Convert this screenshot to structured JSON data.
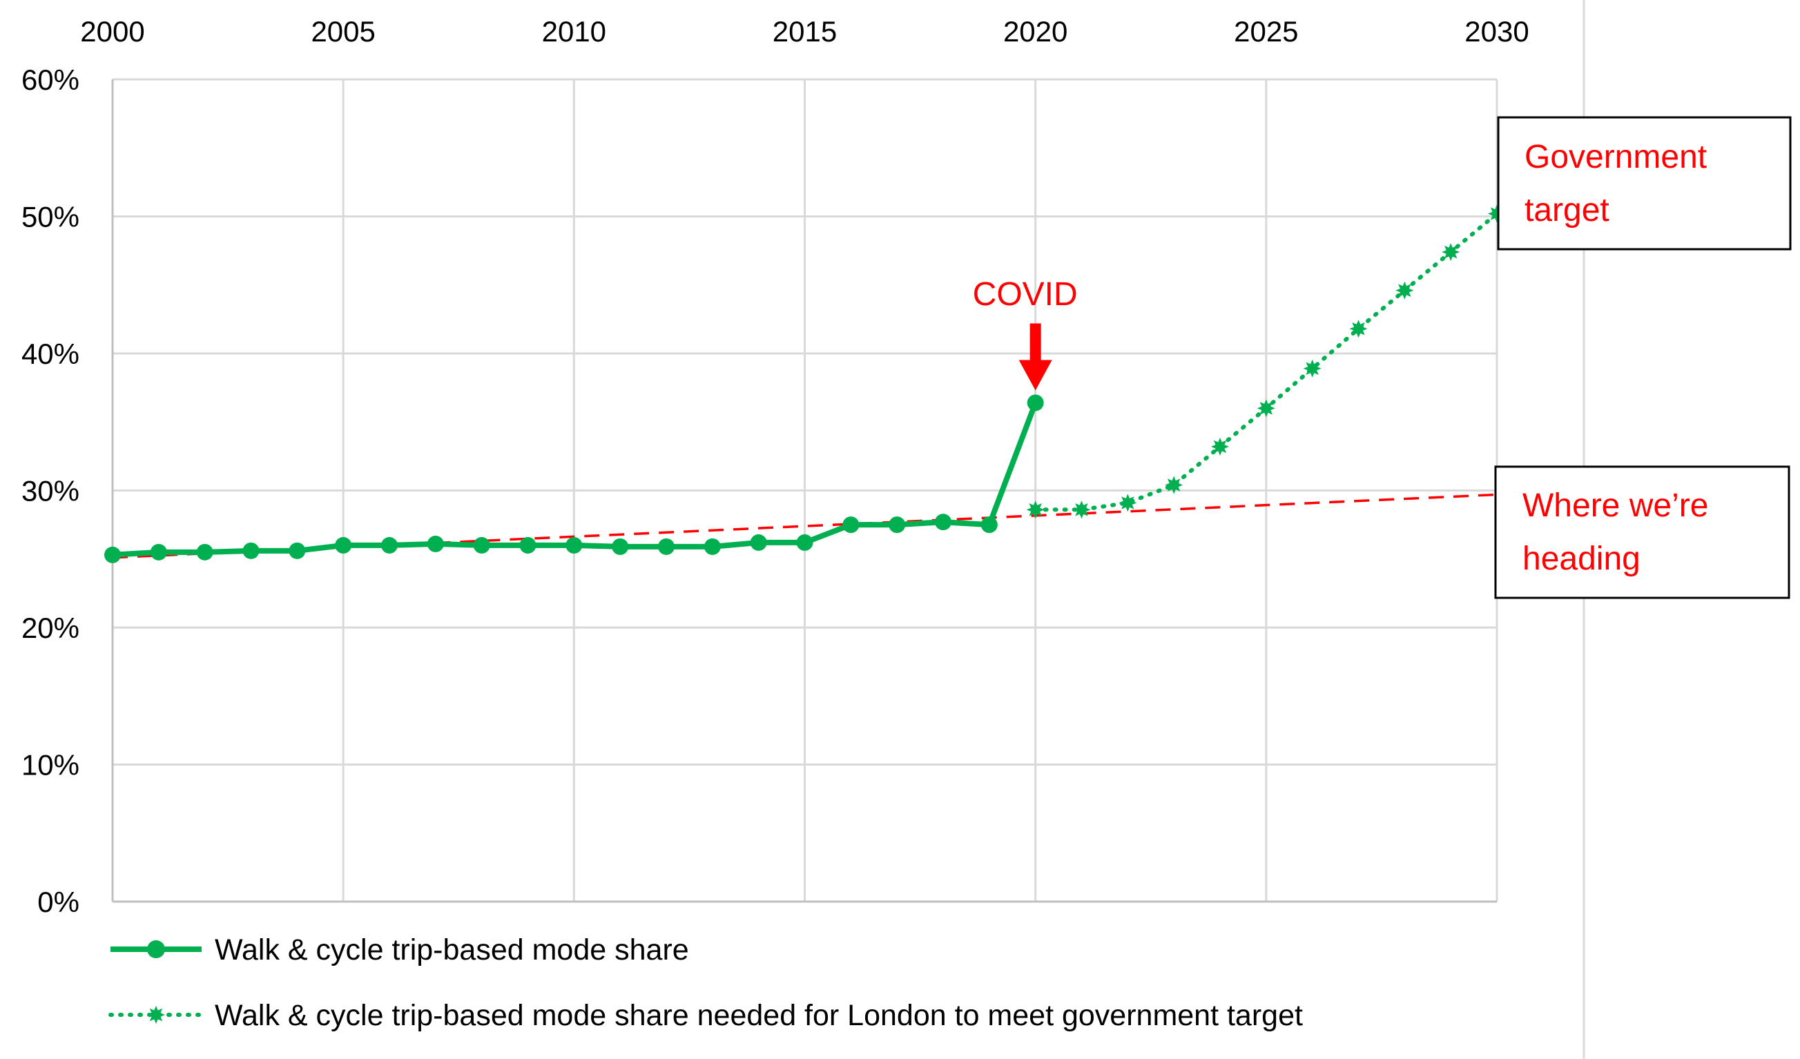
{
  "chart_data": {
    "type": "line",
    "title": "",
    "xlabel": "",
    "ylabel": "",
    "xlim": [
      2000,
      2030
    ],
    "ylim": [
      0,
      60
    ],
    "x_ticks": [
      "2000",
      "2005",
      "2010",
      "2015",
      "2020",
      "2025",
      "2030"
    ],
    "y_ticks": [
      "0%",
      "10%",
      "20%",
      "30%",
      "40%",
      "50%",
      "60%"
    ],
    "x_axis_position": "top",
    "grid": true,
    "legend_position": "bottom-left",
    "series": [
      {
        "name": "Walk & cycle trip-based mode share",
        "color": "#00b050",
        "style": "solid",
        "marker": "circle",
        "x": [
          2000,
          2001,
          2002,
          2003,
          2004,
          2005,
          2006,
          2007,
          2008,
          2009,
          2010,
          2011,
          2012,
          2013,
          2014,
          2015,
          2016,
          2017,
          2018,
          2019,
          2020
        ],
        "values": [
          25.3,
          25.5,
          25.5,
          25.6,
          25.6,
          26.0,
          26.0,
          26.1,
          26.0,
          26.0,
          26.0,
          25.9,
          25.9,
          25.9,
          26.2,
          26.2,
          27.5,
          27.5,
          27.7,
          27.5,
          36.4
        ]
      },
      {
        "name": "Walk & cycle trip-based mode share needed for London to meet government target",
        "color": "#00b050",
        "style": "dotted",
        "marker": "star",
        "x": [
          2020,
          2021,
          2022,
          2023,
          2024,
          2025,
          2026,
          2027,
          2028,
          2029,
          2030
        ],
        "values": [
          28.6,
          28.6,
          29.1,
          30.4,
          33.2,
          36.0,
          38.9,
          41.8,
          44.6,
          47.4,
          50.2
        ]
      }
    ],
    "trend_line": {
      "color": "#ff0000",
      "style": "dashed",
      "x": [
        2000,
        2030
      ],
      "values": [
        25.1,
        29.7
      ]
    },
    "annotations": {
      "covid": {
        "label": "COVID",
        "x": 2020,
        "y": 36.4,
        "color": "#ff0000"
      },
      "government_target": {
        "label_line1": "Government",
        "label_line2": "target",
        "color": "#ff0000"
      },
      "heading": {
        "label_line1": "Where we’re",
        "label_line2": "heading",
        "color": "#ff0000"
      }
    }
  }
}
